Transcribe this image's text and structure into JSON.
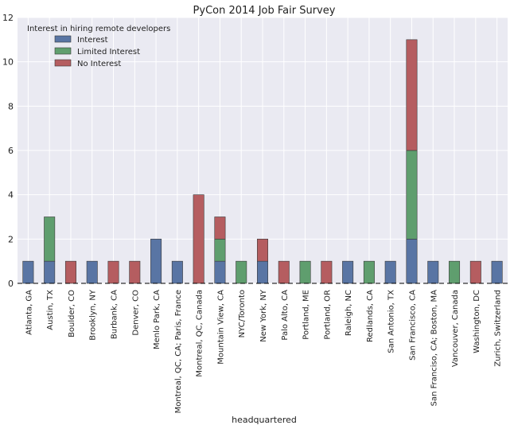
{
  "chart_data": {
    "type": "bar",
    "stacked": true,
    "title": "PyCon 2014 Job Fair Survey",
    "xlabel": "headquartered",
    "ylabel": "",
    "ylim": [
      0,
      12
    ],
    "yticks": [
      0,
      2,
      4,
      6,
      8,
      10,
      12
    ],
    "grid": true,
    "legend": {
      "title": "Interest in hiring remote developers",
      "placement": "top-left"
    },
    "categories": [
      "Atlanta, GA",
      "Austin, TX",
      "Boulder, CO",
      "Brooklyn, NY",
      "Burbank, CA",
      "Denver, CO",
      "Menlo Park, CA",
      "Montreal, QC, CA; Paris, France",
      "Montreal, QC, Canada",
      "Mountain View, CA",
      "NYC/Toronto",
      "New York, NY",
      "Palo Alto, CA",
      "Portland, ME",
      "Portland, OR",
      "Raleigh, NC",
      "Redlands, CA",
      "San Antonio, TX",
      "San Francisco, CA",
      "San Franciso, CA; Boston, MA",
      "Vancouver, Canada",
      "Washington, DC",
      "Zurich, Switzerland"
    ],
    "series": [
      {
        "name": "Interest",
        "color": "#5975a4",
        "values": [
          1,
          1,
          0,
          1,
          0,
          0,
          2,
          1,
          0,
          1,
          0,
          1,
          0,
          0,
          0,
          1,
          0,
          1,
          2,
          1,
          0,
          0,
          1
        ]
      },
      {
        "name": "Limited Interest",
        "color": "#5f9e6e",
        "values": [
          0,
          2,
          0,
          0,
          0,
          0,
          0,
          0,
          0,
          1,
          1,
          0,
          0,
          1,
          0,
          0,
          1,
          0,
          4,
          0,
          1,
          0,
          0
        ]
      },
      {
        "name": "No Interest",
        "color": "#b55d60",
        "values": [
          0,
          0,
          1,
          0,
          1,
          1,
          0,
          0,
          4,
          1,
          0,
          1,
          1,
          0,
          1,
          0,
          0,
          0,
          5,
          0,
          0,
          1,
          0
        ]
      }
    ]
  }
}
